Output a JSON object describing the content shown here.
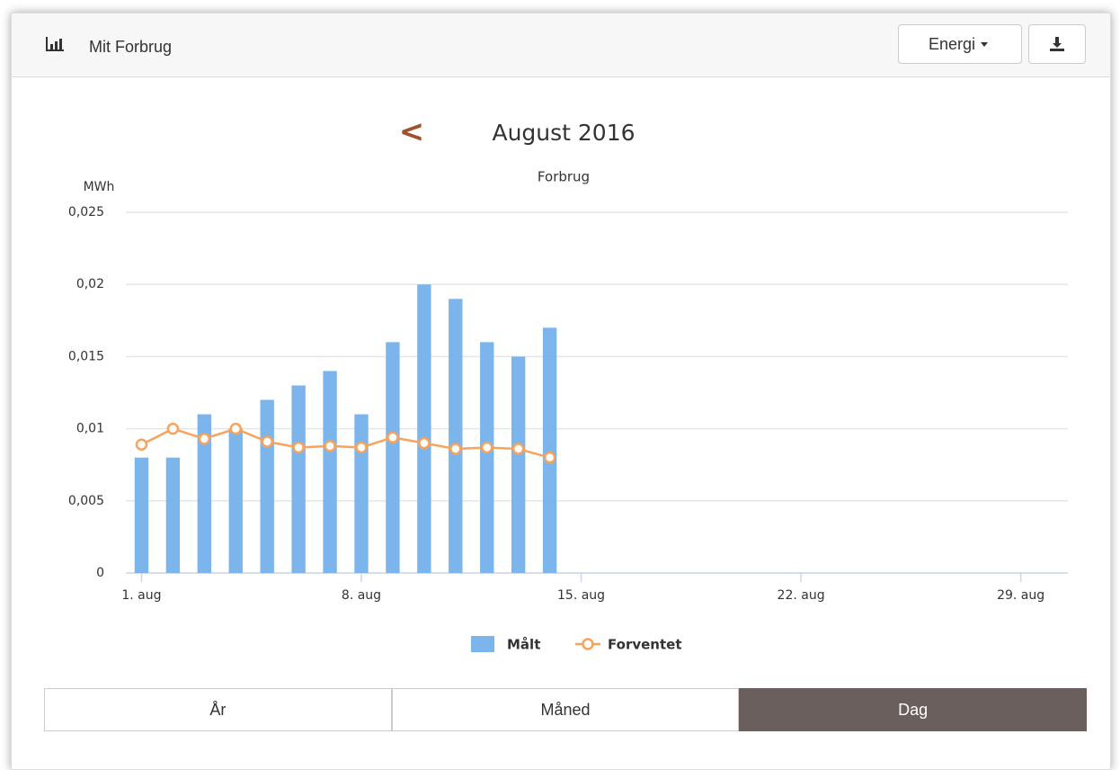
{
  "header": {
    "title": "Mit Forbrug",
    "dropdown": "Energi"
  },
  "nav": {
    "prev": "<"
  },
  "chart_data": {
    "type": "bar",
    "title": "August 2016",
    "subtitle": "Forbrug",
    "y_label": "MWh",
    "x": [
      1,
      2,
      3,
      4,
      5,
      6,
      7,
      8,
      9,
      10,
      11,
      12,
      13,
      14
    ],
    "xlim": [
      0.5,
      30.5
    ],
    "xticks": [
      {
        "value": 1,
        "label": "1. aug"
      },
      {
        "value": 8,
        "label": "8. aug"
      },
      {
        "value": 15,
        "label": "15. aug"
      },
      {
        "value": 22,
        "label": "22. aug"
      },
      {
        "value": 29,
        "label": "29. aug"
      }
    ],
    "ylim": [
      0,
      0.025
    ],
    "yticks": [
      0,
      {
        "value": 0.005,
        "label": "0,005"
      },
      {
        "value": 0.01,
        "label": "0,01"
      },
      {
        "value": 0.015,
        "label": "0,015"
      },
      {
        "value": 0.02,
        "label": "0,02"
      },
      {
        "value": 0.025,
        "label": "0,025"
      }
    ],
    "grid": true,
    "series": [
      {
        "name": "Målt",
        "type": "bar",
        "color": "#7cb5ec",
        "values": [
          0.008,
          0.008,
          0.011,
          0.01,
          0.012,
          0.013,
          0.014,
          0.011,
          0.016,
          0.02,
          0.019,
          0.016,
          0.015,
          0.017
        ]
      },
      {
        "name": "Forventet",
        "type": "line",
        "color": "#f7a35c",
        "values": [
          0.0089,
          0.01,
          0.0093,
          0.01,
          0.0091,
          0.0087,
          0.0088,
          0.0087,
          0.0094,
          0.009,
          0.0086,
          0.0087,
          0.0086,
          0.008
        ]
      }
    ]
  },
  "tabs": [
    "År",
    "Måned",
    "Dag"
  ]
}
